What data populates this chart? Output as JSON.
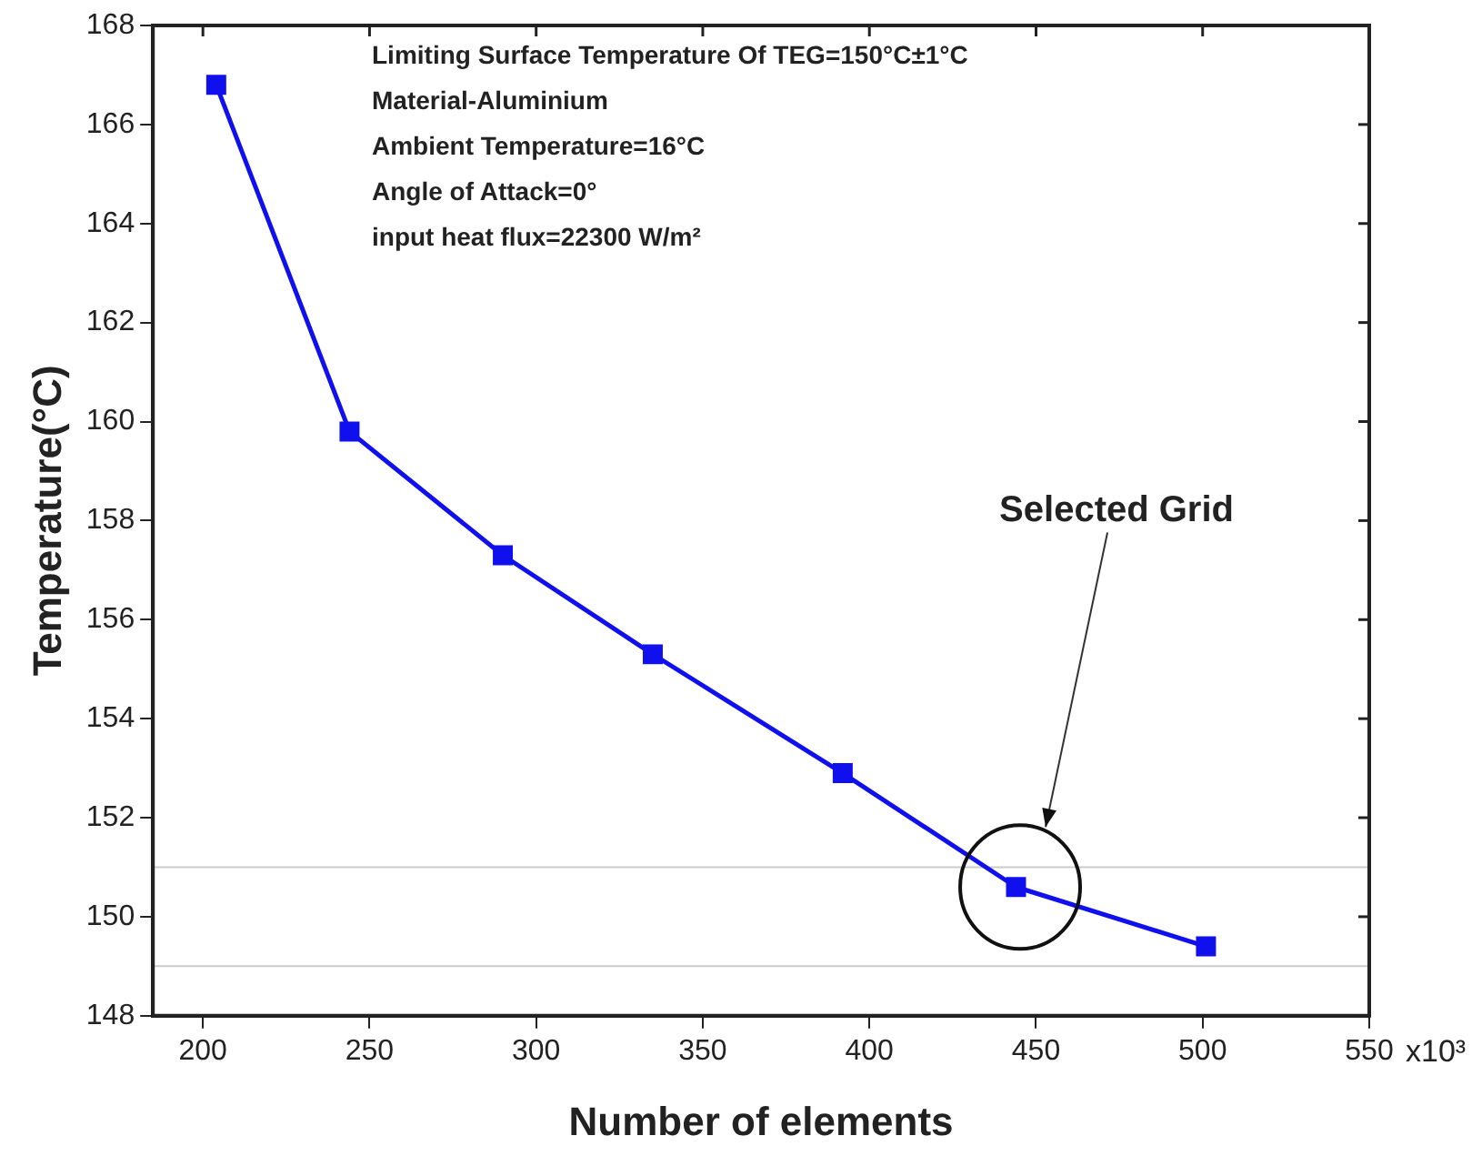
{
  "chart_data": {
    "type": "line",
    "xlabel": "Number of elements",
    "ylabel": "Temperature(°C)",
    "x": [
      204,
      244,
      290,
      335,
      392,
      444,
      501
    ],
    "values": [
      166.8,
      159.8,
      157.3,
      155.3,
      152.9,
      150.6,
      149.4
    ],
    "color": "#1010ee",
    "marker": "square",
    "line_style": "solid",
    "xlim": [
      185,
      550
    ],
    "xticks": [
      200,
      250,
      300,
      350,
      400,
      450,
      500,
      550
    ],
    "ylim": [
      148,
      168
    ],
    "yticks": [
      148,
      150,
      152,
      154,
      156,
      158,
      160,
      162,
      164,
      166,
      168
    ],
    "grid": false,
    "legend": false,
    "ref_lines": [
      {
        "axis": "y",
        "value": 151,
        "color": "#cccccc"
      },
      {
        "axis": "y",
        "value": 149,
        "color": "#cccccc"
      }
    ],
    "annotations": [
      "Limiting Surface Temperature Of TEG=150°C±1°C",
      "Material-Aluminium",
      "Ambient Temperature=16°C",
      "Angle of Attack=0°",
      "input heat flux=22300 W/m²",
      "Selected Grid",
      "x10³"
    ]
  }
}
